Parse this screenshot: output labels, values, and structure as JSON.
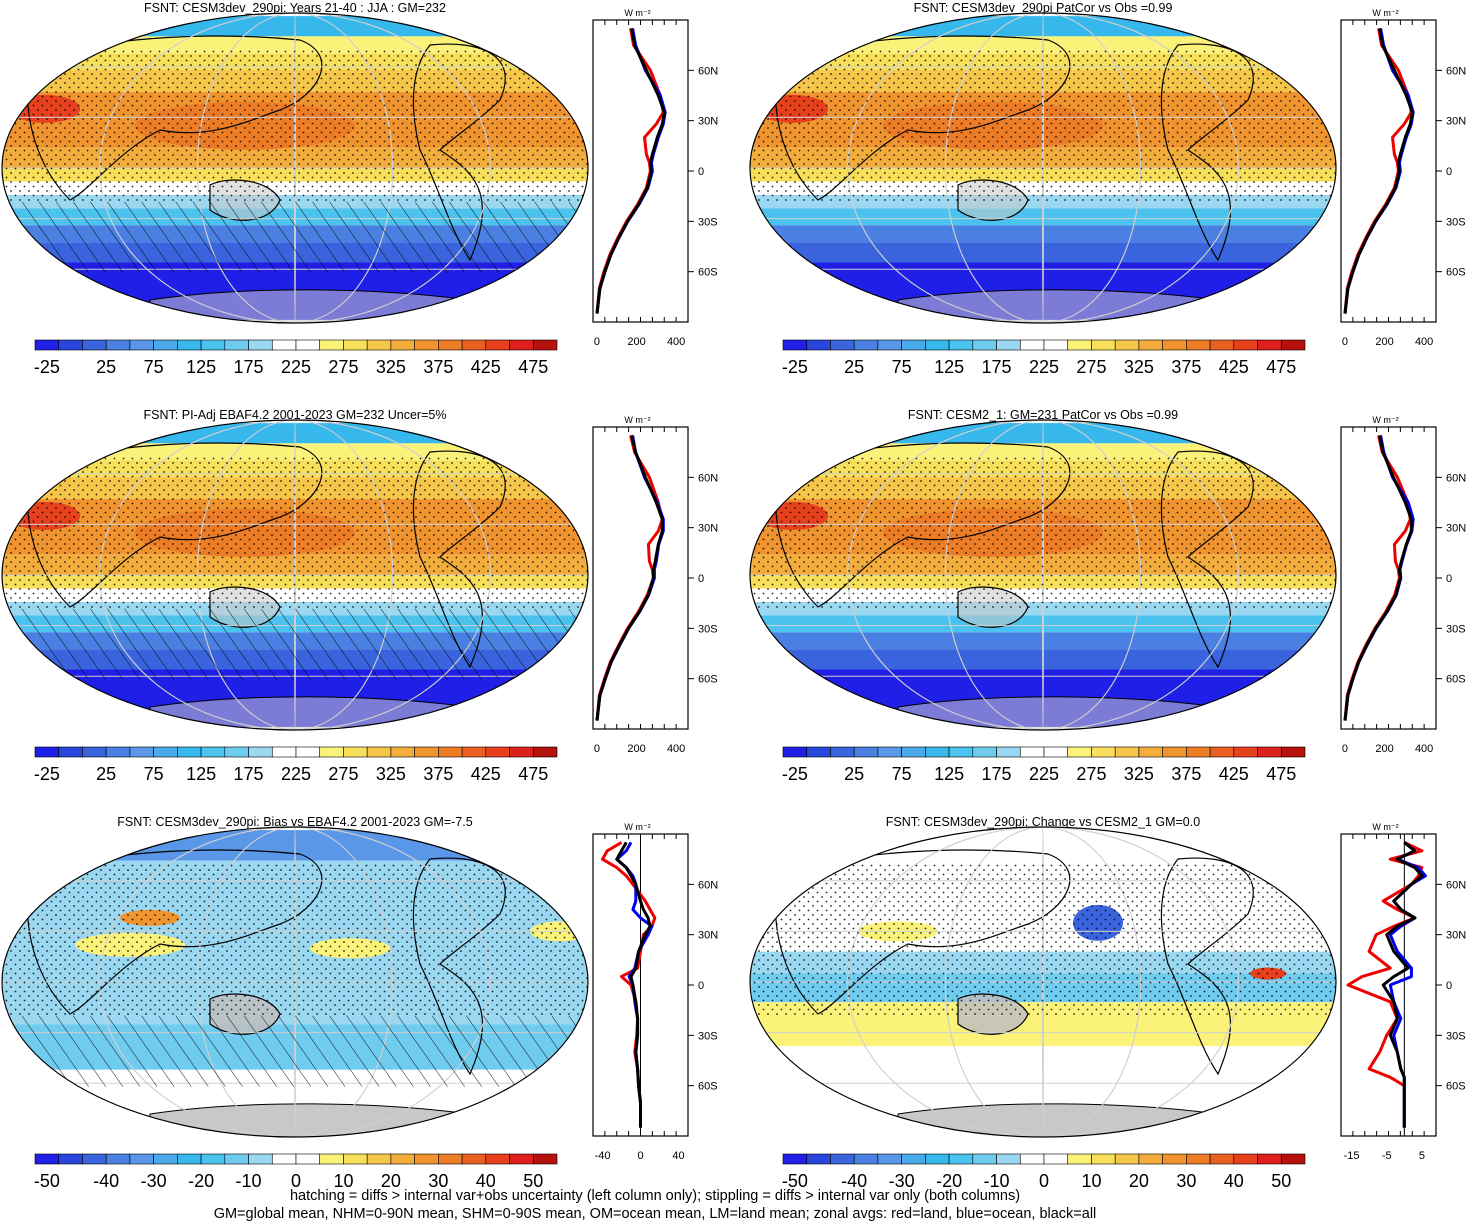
{
  "panels": [
    {
      "title": "FSNT: CESM3dev_290pi: Years 21-40 : JJA : GM=232",
      "kind": "abs",
      "hatch": true,
      "stipple": true
    },
    {
      "title": "FSNT: CESM3dev_290pi PatCor vs Obs =0.99",
      "kind": "abs",
      "hatch": false,
      "stipple": true
    },
    {
      "title": "FSNT: PI-Adj EBAF4.2 2001-2023 GM=232 Uncer=5%",
      "kind": "abs",
      "hatch": true,
      "stipple": true
    },
    {
      "title": "FSNT: CESM2_1: GM=231 PatCor vs Obs =0.99",
      "kind": "abs",
      "hatch": false,
      "stipple": true
    },
    {
      "title": "FSNT: CESM3dev_290pi: Bias vs EBAF4.2 2001-2023 GM=-7.5",
      "kind": "bias",
      "hatch": true,
      "stipple": true
    },
    {
      "title": "FSNT: CESM3dev_290pi: Change vs CESM2_1 GM=0.0",
      "kind": "change",
      "hatch": false,
      "stipple": true
    }
  ],
  "colorbars": {
    "abs": {
      "labels": [
        "-25",
        "25",
        "75",
        "125",
        "175",
        "225",
        "275",
        "325",
        "375",
        "425",
        "475"
      ]
    },
    "diff": {
      "labels": [
        "-50",
        "-40",
        "-30",
        "-20",
        "-10",
        "0",
        "10",
        "20",
        "30",
        "40",
        "50"
      ]
    },
    "colors": [
      "#1f1fe8",
      "#2946dc",
      "#3a64de",
      "#4a80e2",
      "#5a97e8",
      "#4aaae9",
      "#36b8ec",
      "#4cc3ef",
      "#70ccef",
      "#9ad7f1",
      "#ffffff",
      "#ffffff",
      "#fbf27a",
      "#f8df5a",
      "#f5c64a",
      "#f2ad3c",
      "#f09430",
      "#ed7c26",
      "#ea6020",
      "#e6401d",
      "#df1f1b",
      "#b5120f"
    ]
  },
  "zonal_axis_unit": "W m⁻²",
  "zonal_lat_labels": [
    "60N",
    "30N",
    "0",
    "30S",
    "60S"
  ],
  "chart_data": [
    {
      "type": "line",
      "panel": "FSNT: CESM3dev_290pi: Years 21-40 : JJA : GM=232",
      "xlim": [
        -20,
        460
      ],
      "xticks": [
        "0",
        "200",
        "400"
      ],
      "lat": [
        85,
        75,
        60,
        45,
        35,
        28,
        20,
        10,
        5,
        0,
        -10,
        -20,
        -30,
        -40,
        -50,
        -60,
        -70,
        -85
      ],
      "series": [
        {
          "name": "all",
          "values": [
            175,
            190,
            250,
            310,
            340,
            330,
            305,
            280,
            270,
            275,
            255,
            210,
            155,
            110,
            70,
            40,
            15,
            0
          ]
        },
        {
          "name": "land",
          "values": [
            170,
            185,
            270,
            320,
            335,
            300,
            240,
            250,
            265,
            270,
            250,
            205,
            150,
            105,
            65,
            35,
            12,
            0
          ]
        },
        {
          "name": "ocean",
          "values": [
            180,
            195,
            245,
            320,
            345,
            335,
            310,
            285,
            275,
            280,
            258,
            212,
            156,
            110,
            70,
            40,
            15,
            0
          ]
        }
      ]
    },
    {
      "type": "line",
      "panel": "FSNT: CESM3dev_290pi PatCor vs Obs =0.99",
      "xlim": [
        -20,
        460
      ],
      "xticks": [
        "0",
        "200",
        "400"
      ],
      "lat": [
        85,
        75,
        60,
        45,
        35,
        28,
        20,
        10,
        5,
        0,
        -10,
        -20,
        -30,
        -40,
        -50,
        -60,
        -70,
        -85
      ],
      "series": [
        {
          "name": "all",
          "values": [
            175,
            190,
            250,
            310,
            340,
            330,
            305,
            280,
            270,
            275,
            255,
            210,
            155,
            110,
            70,
            40,
            15,
            0
          ]
        },
        {
          "name": "land",
          "values": [
            170,
            185,
            270,
            320,
            335,
            300,
            240,
            250,
            265,
            270,
            250,
            205,
            150,
            105,
            65,
            35,
            12,
            0
          ]
        },
        {
          "name": "ocean",
          "values": [
            180,
            195,
            240,
            320,
            345,
            335,
            310,
            285,
            275,
            280,
            258,
            212,
            156,
            110,
            70,
            40,
            15,
            0
          ]
        }
      ]
    },
    {
      "type": "line",
      "panel": "FSNT: PI-Adj EBAF4.2 2001-2023 GM=232 Uncer=5%",
      "xlim": [
        -20,
        460
      ],
      "xticks": [
        "0",
        "200",
        "400"
      ],
      "lat": [
        85,
        75,
        60,
        45,
        35,
        28,
        20,
        10,
        5,
        0,
        -10,
        -20,
        -30,
        -40,
        -50,
        -60,
        -70,
        -85
      ],
      "series": [
        {
          "name": "all",
          "values": [
            175,
            195,
            245,
            300,
            330,
            330,
            310,
            295,
            285,
            285,
            260,
            215,
            160,
            115,
            72,
            42,
            15,
            0
          ]
        },
        {
          "name": "land",
          "values": [
            170,
            190,
            265,
            310,
            330,
            310,
            260,
            265,
            280,
            285,
            255,
            210,
            155,
            110,
            68,
            38,
            12,
            0
          ]
        },
        {
          "name": "ocean",
          "values": [
            180,
            195,
            240,
            305,
            335,
            335,
            312,
            300,
            290,
            290,
            262,
            216,
            160,
            115,
            72,
            42,
            15,
            0
          ]
        }
      ]
    },
    {
      "type": "line",
      "panel": "FSNT: CESM2_1: GM=231 PatCor vs Obs =0.99",
      "xlim": [
        -20,
        460
      ],
      "xticks": [
        "0",
        "200",
        "400"
      ],
      "lat": [
        85,
        75,
        60,
        45,
        35,
        28,
        20,
        10,
        5,
        0,
        -10,
        -20,
        -30,
        -40,
        -50,
        -60,
        -70,
        -85
      ],
      "series": [
        {
          "name": "all",
          "values": [
            175,
            192,
            245,
            305,
            335,
            335,
            310,
            285,
            275,
            280,
            258,
            212,
            156,
            110,
            70,
            40,
            15,
            0
          ]
        },
        {
          "name": "land",
          "values": [
            170,
            188,
            265,
            318,
            330,
            305,
            250,
            255,
            270,
            275,
            252,
            207,
            152,
            106,
            66,
            36,
            12,
            0
          ]
        },
        {
          "name": "ocean",
          "values": [
            180,
            196,
            240,
            320,
            345,
            338,
            312,
            288,
            278,
            282,
            260,
            214,
            158,
            112,
            70,
            40,
            15,
            0
          ]
        }
      ]
    },
    {
      "type": "line",
      "panel": "FSNT: CESM3dev_290pi: Bias vs EBAF4.2 2001-2023 GM=-7.5",
      "xlim": [
        -50,
        50
      ],
      "xticks": [
        "-40",
        "0",
        "40"
      ],
      "lat": [
        85,
        80,
        75,
        70,
        65,
        60,
        50,
        45,
        40,
        35,
        30,
        20,
        10,
        5,
        0,
        -10,
        -20,
        -30,
        -40,
        -50,
        -60,
        -70,
        -85
      ],
      "series": [
        {
          "name": "all",
          "values": [
            -15,
            -20,
            -25,
            -15,
            -10,
            -5,
            0,
            3,
            8,
            10,
            5,
            -2,
            -5,
            -10,
            -8,
            -5,
            -3,
            -3,
            -5,
            -3,
            -2,
            0,
            0
          ]
        },
        {
          "name": "land",
          "values": [
            -20,
            -35,
            -40,
            -25,
            -15,
            -8,
            5,
            10,
            15,
            12,
            3,
            0,
            -3,
            -20,
            -10,
            -5,
            -3,
            -4,
            -6,
            -3,
            -2,
            0,
            0
          ]
        },
        {
          "name": "ocean",
          "values": [
            -10,
            -15,
            -25,
            -15,
            -8,
            -5,
            -5,
            -8,
            0,
            12,
            8,
            -2,
            -6,
            -12,
            -8,
            -6,
            -3,
            -3,
            -5,
            -3,
            -2,
            0,
            0
          ]
        }
      ]
    },
    {
      "type": "line",
      "panel": "FSNT: CESM3dev_290pi: Change vs CESM2_1 GM=0.0",
      "xlim": [
        -18,
        9
      ],
      "xticks": [
        "-15",
        "-5",
        "5"
      ],
      "lat": [
        85,
        80,
        75,
        70,
        65,
        60,
        50,
        45,
        40,
        35,
        30,
        20,
        10,
        5,
        0,
        -10,
        -20,
        -30,
        -40,
        -50,
        -55,
        -60,
        -70,
        -85
      ],
      "series": [
        {
          "name": "all",
          "values": [
            0,
            3,
            -2,
            3,
            5,
            2,
            -3,
            -1,
            3,
            -2,
            -5,
            -3,
            1,
            -3,
            -6,
            -3,
            -2,
            -4,
            -2,
            -1,
            0,
            0,
            0,
            0
          ]
        },
        {
          "name": "land",
          "values": [
            0,
            5,
            -4,
            5,
            4,
            2,
            -6,
            -2,
            3,
            -3,
            -8,
            -10,
            -4,
            -12,
            -16,
            -4,
            -2,
            -5,
            -7,
            -10,
            -4,
            0,
            0,
            0
          ]
        },
        {
          "name": "ocean",
          "values": [
            0,
            3,
            -2,
            4,
            6,
            2,
            -3,
            -1,
            3,
            -1,
            -4,
            -2,
            2,
            2,
            -4,
            -3,
            -1,
            -3,
            -2,
            -1,
            0,
            0,
            0,
            0
          ]
        }
      ]
    }
  ],
  "footer": {
    "line1": "hatching = diffs > internal var+obs uncertainty (left column only); stippling = diffs > internal var only (both columns)",
    "line2": "GM=global mean, NHM=0-90N mean, SHM=0-90S mean, OM=ocean mean, LM=land mean; zonal avgs: red=land, blue=ocean, black=all"
  }
}
